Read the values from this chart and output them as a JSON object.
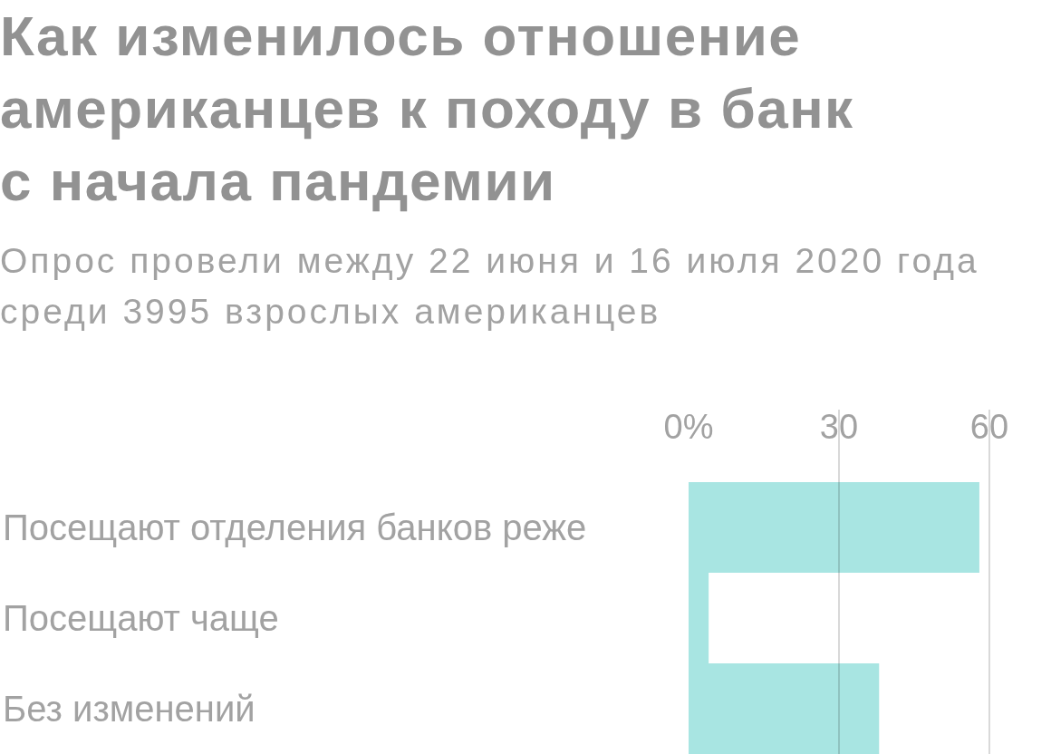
{
  "chart_data": {
    "type": "bar",
    "orientation": "horizontal",
    "title": "Как изменилось отношение американцев к походу в банк с начала пандемии",
    "subtitle": "Опрос провели между 22 июня и 16 июля 2020 года среди 3995 взрослых американцев",
    "categories": [
      "Посещают отделения банков реже",
      "Посещают чаще",
      "Без изменений"
    ],
    "values": [
      58,
      4,
      38
    ],
    "color": "#a8e5e2",
    "xlim": [
      0,
      60
    ],
    "xticks": [
      {
        "value": 0,
        "label": "0%"
      },
      30,
      60
    ],
    "grid": "x"
  }
}
